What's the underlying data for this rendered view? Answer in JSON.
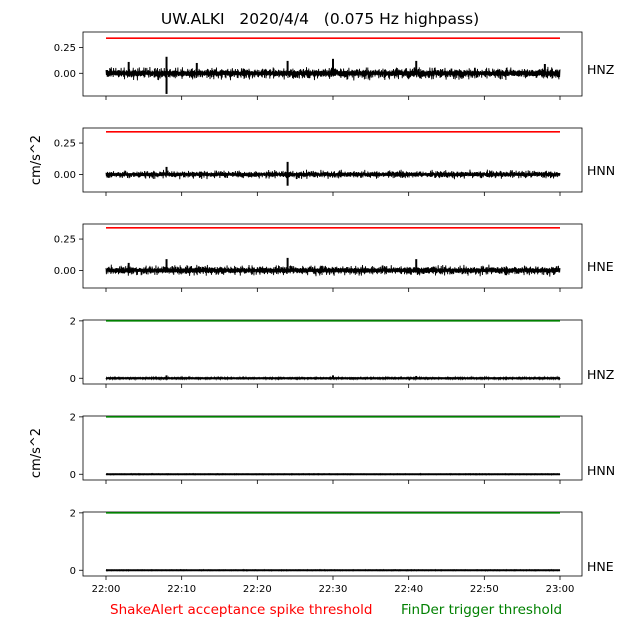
{
  "chart_data": {
    "type": "line",
    "title": "UW.ALKI   2020/4/4   (0.075 Hz highpass)",
    "ylabel": "cm/s^2",
    "x_ticks": [
      "22:00",
      "22:10",
      "22:20",
      "22:30",
      "22:40",
      "22:50",
      "23:00"
    ],
    "x_range": [
      "22:00",
      "23:00"
    ],
    "legend": [
      {
        "label": "ShakeAlert acceptance spike threshold",
        "color": "#ff0000"
      },
      {
        "label": "FinDer trigger threshold",
        "color": "#008000"
      }
    ],
    "panels": [
      {
        "channel": "HNZ",
        "threshold": 0.34,
        "threshold_color": "#ff0000",
        "ylim": [
          -0.22,
          0.4
        ],
        "yticks": [
          0,
          0.25
        ],
        "ytick_labels": [
          "0.00",
          "0.25"
        ],
        "amplitude": 0.07,
        "spikes": [
          {
            "time": "22:03",
            "value": 0.11
          },
          {
            "time": "22:08",
            "value": 0.16
          },
          {
            "time": "22:08",
            "value": -0.2
          },
          {
            "time": "22:12",
            "value": 0.1
          },
          {
            "time": "22:24",
            "value": 0.12
          },
          {
            "time": "22:30",
            "value": 0.14
          },
          {
            "time": "22:41",
            "value": 0.12
          },
          {
            "time": "22:58",
            "value": 0.09
          }
        ]
      },
      {
        "channel": "HNN",
        "threshold": 0.34,
        "threshold_color": "#ff0000",
        "ylim": [
          -0.14,
          0.37
        ],
        "yticks": [
          0,
          0.25
        ],
        "ytick_labels": [
          "0.00",
          "0.25"
        ],
        "amplitude": 0.04,
        "spikes": [
          {
            "time": "22:08",
            "value": 0.06
          },
          {
            "time": "22:24",
            "value": 0.1
          },
          {
            "time": "22:24",
            "value": -0.09
          }
        ]
      },
      {
        "channel": "HNE",
        "threshold": 0.34,
        "threshold_color": "#ff0000",
        "ylim": [
          -0.14,
          0.37
        ],
        "yticks": [
          0,
          0.25
        ],
        "ytick_labels": [
          "0.00",
          "0.25"
        ],
        "amplitude": 0.05,
        "spikes": [
          {
            "time": "22:03",
            "value": 0.06
          },
          {
            "time": "22:08",
            "value": 0.09
          },
          {
            "time": "22:24",
            "value": 0.1
          },
          {
            "time": "22:41",
            "value": 0.09
          }
        ]
      },
      {
        "channel": "HNZ",
        "threshold": 2,
        "threshold_color": "#008000",
        "ylim": [
          -0.2,
          2.03
        ],
        "yticks": [
          0,
          2
        ],
        "ytick_labels": [
          "0",
          "2"
        ],
        "amplitude": 0.04,
        "spikes": [
          {
            "time": "22:08",
            "value": 0.1
          },
          {
            "time": "22:30",
            "value": 0.1
          },
          {
            "time": "22:41",
            "value": 0.08
          }
        ]
      },
      {
        "channel": "HNN",
        "threshold": 2,
        "threshold_color": "#008000",
        "ylim": [
          -0.2,
          2.03
        ],
        "yticks": [
          0,
          2
        ],
        "ytick_labels": [
          "0",
          "2"
        ],
        "amplitude": 0.02,
        "spikes": []
      },
      {
        "channel": "HNE",
        "threshold": 2,
        "threshold_color": "#008000",
        "ylim": [
          -0.2,
          2.03
        ],
        "yticks": [
          0,
          2
        ],
        "ytick_labels": [
          "0",
          "2"
        ],
        "amplitude": 0.02,
        "spikes": []
      }
    ]
  }
}
